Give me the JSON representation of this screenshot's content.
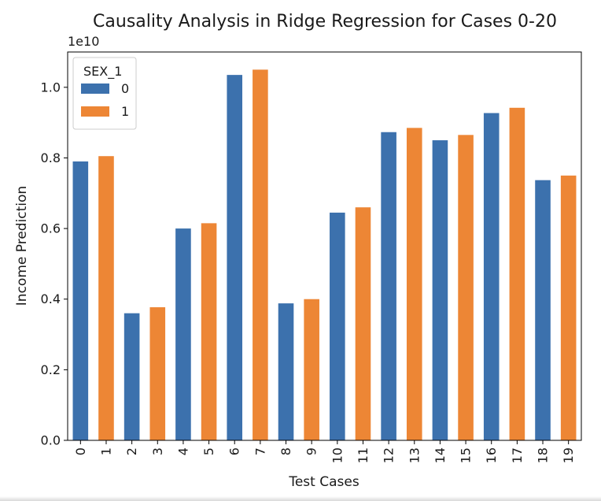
{
  "chart_data": {
    "type": "bar",
    "title": "Causality Analysis in Ridge Regression for Cases 0-20",
    "xlabel": "Test Cases",
    "ylabel": "Income Prediction",
    "y_offset_label": "1e10",
    "categories": [
      "0",
      "1",
      "2",
      "3",
      "4",
      "5",
      "6",
      "7",
      "8",
      "9",
      "10",
      "11",
      "12",
      "13",
      "14",
      "15",
      "16",
      "17",
      "18",
      "19"
    ],
    "series": [
      {
        "name": "0",
        "color": "#3c71ad"
      },
      {
        "name": "1",
        "color": "#ed8635"
      }
    ],
    "bars": [
      {
        "x": "0",
        "value": 0.79,
        "series": "0"
      },
      {
        "x": "1",
        "value": 0.805,
        "series": "1"
      },
      {
        "x": "2",
        "value": 0.36,
        "series": "0"
      },
      {
        "x": "3",
        "value": 0.377,
        "series": "1"
      },
      {
        "x": "4",
        "value": 0.6,
        "series": "0"
      },
      {
        "x": "5",
        "value": 0.615,
        "series": "1"
      },
      {
        "x": "6",
        "value": 1.035,
        "series": "0"
      },
      {
        "x": "7",
        "value": 1.05,
        "series": "1"
      },
      {
        "x": "8",
        "value": 0.388,
        "series": "0"
      },
      {
        "x": "9",
        "value": 0.4,
        "series": "1"
      },
      {
        "x": "10",
        "value": 0.645,
        "series": "0"
      },
      {
        "x": "11",
        "value": 0.66,
        "series": "1"
      },
      {
        "x": "12",
        "value": 0.873,
        "series": "0"
      },
      {
        "x": "13",
        "value": 0.885,
        "series": "1"
      },
      {
        "x": "14",
        "value": 0.85,
        "series": "0"
      },
      {
        "x": "15",
        "value": 0.865,
        "series": "1"
      },
      {
        "x": "16",
        "value": 0.927,
        "series": "0"
      },
      {
        "x": "17",
        "value": 0.942,
        "series": "1"
      },
      {
        "x": "18",
        "value": 0.737,
        "series": "0"
      },
      {
        "x": "19",
        "value": 0.75,
        "series": "1"
      }
    ],
    "ylim": [
      0,
      1.1
    ],
    "yticks": [
      0.0,
      0.2,
      0.4,
      0.6,
      0.8,
      1.0
    ],
    "yticklabels": [
      "0.0",
      "0.2",
      "0.4",
      "0.6",
      "0.8",
      "1.0"
    ],
    "legend": {
      "title": "SEX_1",
      "placement": "top-left"
    },
    "grid": false
  }
}
